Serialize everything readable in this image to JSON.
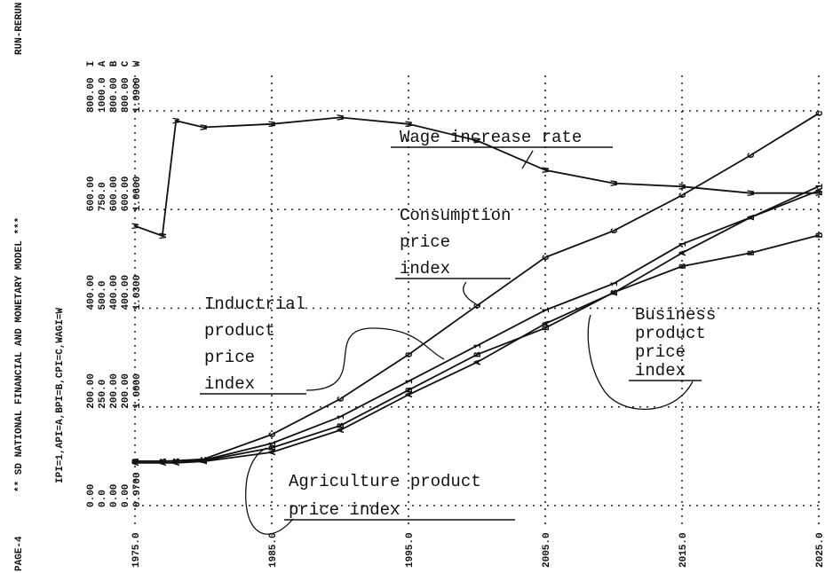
{
  "chart_data": {
    "type": "line",
    "page": "PAGE-4",
    "title": "** SD NATIONAL FINANCIAL AND MONETARY MODEL ***",
    "run": "RUN-RERUN",
    "legend": "IPI=1,API=A,BPI=B,CPI=C,WAGI=W",
    "x": [
      1975,
      1977,
      1978,
      1980,
      1985,
      1990,
      1995,
      2000,
      2005,
      2010,
      2015,
      2020,
      2025
    ],
    "xlim": [
      1975,
      2025
    ],
    "xticks": [
      {
        "value": 1975,
        "label": "1975.0"
      },
      {
        "value": 1985,
        "label": "1985.0"
      },
      {
        "value": 1995,
        "label": "1995.0"
      },
      {
        "value": 2005,
        "label": "2005.0"
      },
      {
        "value": 2015,
        "label": "2015.0"
      },
      {
        "value": 2025,
        "label": "2025.0"
      }
    ],
    "grid": true,
    "axes": [
      {
        "name": "I",
        "lim": [
          0,
          800
        ],
        "ticks": [
          {
            "value": 0,
            "label": "0.00"
          },
          {
            "value": 200,
            "label": "200.00"
          },
          {
            "value": 400,
            "label": "400.00"
          },
          {
            "value": 600,
            "label": "600.00"
          },
          {
            "value": 800,
            "label": "800.00"
          }
        ]
      },
      {
        "name": "A",
        "lim": [
          0,
          1000
        ],
        "ticks": [
          {
            "value": 0,
            "label": "0.0"
          },
          {
            "value": 250,
            "label": "250.0"
          },
          {
            "value": 500,
            "label": "500.0"
          },
          {
            "value": 750,
            "label": "750.0"
          },
          {
            "value": 1000,
            "label": "1000.0"
          }
        ]
      },
      {
        "name": "B",
        "lim": [
          0,
          800
        ],
        "ticks": [
          {
            "value": 0,
            "label": "0.00"
          },
          {
            "value": 200,
            "label": "200.00"
          },
          {
            "value": 400,
            "label": "400.00"
          },
          {
            "value": 600,
            "label": "600.00"
          },
          {
            "value": 800,
            "label": "800.00"
          }
        ]
      },
      {
        "name": "C",
        "lim": [
          0,
          800
        ],
        "ticks": [
          {
            "value": 0,
            "label": "0.00"
          },
          {
            "value": 200,
            "label": "200.00"
          },
          {
            "value": 400,
            "label": "400.00"
          },
          {
            "value": 600,
            "label": "600.00"
          },
          {
            "value": 800,
            "label": "800.00"
          }
        ]
      },
      {
        "name": "W",
        "lim": [
          0.97,
          1.09
        ],
        "ticks": [
          {
            "value": 0.97,
            "label": "0.9700"
          },
          {
            "value": 1.0,
            "label": "1.0000"
          },
          {
            "value": 1.03,
            "label": "1.0300"
          },
          {
            "value": 1.06,
            "label": "1.0600"
          },
          {
            "value": 1.09,
            "label": "1.0900"
          }
        ]
      }
    ],
    "series": [
      {
        "name": "IPI",
        "symbol": "1",
        "axis": 0,
        "color": "#111",
        "values": [
          90,
          90,
          90,
          92,
          126,
          180,
          252,
          324,
          396,
          450,
          530,
          584,
          647
        ]
      },
      {
        "name": "API",
        "symbol": "A",
        "axis": 1,
        "color": "#111",
        "values": [
          108,
          108,
          108,
          112,
          135,
          191,
          281,
          363,
          461,
          539,
          640,
          730,
          798
        ]
      },
      {
        "name": "BPI",
        "symbol": "B",
        "axis": 2,
        "color": "#111",
        "values": [
          90,
          90,
          90,
          91,
          117,
          162,
          234,
          306,
          360,
          432,
          485,
          512,
          548
        ]
      },
      {
        "name": "CPI",
        "symbol": "C",
        "axis": 3,
        "color": "#111",
        "values": [
          90,
          90,
          91,
          94,
          144,
          216,
          306,
          405,
          503,
          557,
          629,
          710,
          795
        ]
      },
      {
        "name": "WAGI",
        "symbol": "W",
        "axis": 4,
        "color": "#111",
        "values": [
          1.055,
          1.052,
          1.087,
          1.085,
          1.086,
          1.088,
          1.086,
          1.081,
          1.072,
          1.068,
          1.067,
          1.065,
          1.065
        ]
      }
    ],
    "annotations": [
      {
        "lines": [
          "Wage increase rate"
        ]
      },
      {
        "lines": [
          "Consumption",
          "price",
          "index"
        ]
      },
      {
        "lines": [
          "Inductrial",
          "product",
          "price",
          "index"
        ]
      },
      {
        "lines": [
          "Business",
          "product",
          "price",
          "index"
        ]
      },
      {
        "lines": [
          "Agriculture product",
          "price index"
        ]
      }
    ]
  }
}
